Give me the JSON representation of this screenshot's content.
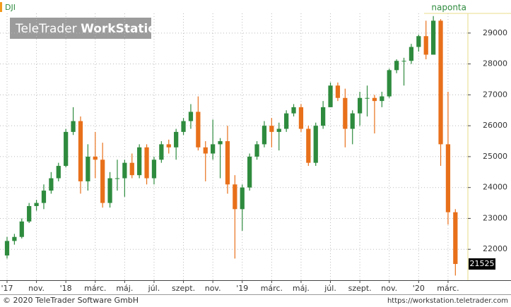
{
  "chart_data": {
    "type": "candlestick",
    "symbol": "DJI",
    "interval": "naponta",
    "watermark": [
      "TeleTrader",
      "WorkStation"
    ],
    "footer_left": "© 2020 TeleTrader Software GmbH",
    "footer_right": "https://workstation.teletrader.com",
    "up_color": "#2e8b3e",
    "down_color": "#e8701a",
    "x": [
      0,
      0.5,
      1,
      1.5,
      2,
      2.5,
      3,
      3.5,
      4,
      4.5,
      5,
      5.5,
      6,
      6.5,
      7,
      7.5,
      8,
      8.5,
      9,
      9.5,
      10,
      10.5,
      11,
      11.5,
      12,
      12.5,
      13,
      13.5,
      14,
      14.5,
      15,
      15.5,
      16,
      16.5,
      17,
      17.5,
      18,
      18.5,
      19,
      19.5,
      20,
      20.5,
      21,
      21.5,
      22,
      22.5,
      23,
      23.5,
      24,
      24.5,
      25,
      25.5,
      26,
      26.5,
      27,
      27.5,
      28,
      28.5,
      29,
      29.5,
      30,
      30.5
    ],
    "open": [
      21800,
      22270,
      22400,
      22900,
      23400,
      23500,
      23900,
      24300,
      24700,
      25800,
      26150,
      24200,
      25000,
      24900,
      23500,
      24300,
      24300,
      24800,
      24400,
      25300,
      24300,
      24900,
      25400,
      25300,
      25800,
      26150,
      26450,
      25300,
      25100,
      25400,
      25500,
      24100,
      23300,
      24000,
      25000,
      25400,
      26000,
      25800,
      25900,
      26400,
      26600,
      25900,
      24800,
      26000,
      26600,
      27300,
      26900,
      25900,
      26400,
      26900,
      26900,
      26800,
      26950,
      27800,
      28100,
      28100,
      28550,
      28900,
      28300,
      29400,
      25400,
      23200
    ],
    "high": [
      22400,
      22500,
      23000,
      23500,
      23600,
      24100,
      24500,
      24800,
      25900,
      26600,
      26300,
      25400,
      25800,
      25450,
      24500,
      24900,
      24900,
      25100,
      25400,
      25400,
      25000,
      25500,
      25550,
      25900,
      26250,
      26700,
      26950,
      25500,
      26200,
      25600,
      26000,
      24400,
      24100,
      25100,
      25500,
      26150,
      26250,
      26100,
      26500,
      26700,
      26700,
      26000,
      26100,
      26800,
      27400,
      27400,
      27200,
      26500,
      27100,
      27300,
      27000,
      27100,
      27850,
      28150,
      28200,
      28650,
      28950,
      29400,
      29550,
      29450,
      27100,
      23300
    ],
    "low": [
      21700,
      22150,
      22350,
      22850,
      23250,
      23300,
      23800,
      24200,
      24650,
      25700,
      23800,
      23900,
      24300,
      23350,
      23350,
      23900,
      23700,
      24300,
      24300,
      24100,
      24100,
      24800,
      25100,
      24900,
      25700,
      25900,
      25200,
      24200,
      24900,
      24300,
      23800,
      21700,
      22600,
      23900,
      24900,
      25300,
      25300,
      25200,
      25800,
      26300,
      25800,
      24700,
      24700,
      25900,
      26600,
      26800,
      25300,
      25400,
      26000,
      26300,
      25750,
      26600,
      26900,
      27700,
      27300,
      28000,
      28400,
      28150,
      28300,
      24700,
      22800,
      21150
    ],
    "close": [
      22270,
      22400,
      22900,
      23400,
      23500,
      23900,
      24300,
      24700,
      25800,
      26150,
      24200,
      25000,
      24900,
      23500,
      24300,
      24300,
      24800,
      24400,
      25300,
      24300,
      24900,
      25400,
      25300,
      25800,
      26150,
      26450,
      25300,
      25100,
      25400,
      25500,
      24100,
      23300,
      24000,
      25000,
      25400,
      26000,
      25800,
      25900,
      26400,
      26600,
      25900,
      24800,
      26000,
      26600,
      27300,
      26900,
      25900,
      26400,
      26900,
      26900,
      26800,
      26950,
      27800,
      28100,
      28100,
      28550,
      28900,
      28300,
      29400,
      25400,
      23200,
      21525
    ],
    "xlim": [
      -0.48,
      31.35
    ],
    "xticks": [
      {
        "value": 0,
        "label": "'17"
      },
      {
        "value": 2,
        "label": "nov."
      },
      {
        "value": 4,
        "label": "'18"
      },
      {
        "value": 6,
        "label": "márc."
      },
      {
        "value": 8,
        "label": "máj."
      },
      {
        "value": 10,
        "label": "júl."
      },
      {
        "value": 12,
        "label": "szept."
      },
      {
        "value": 14,
        "label": "nov."
      },
      {
        "value": 16,
        "label": "'19"
      },
      {
        "value": 18,
        "label": "márc."
      },
      {
        "value": 20,
        "label": "máj."
      },
      {
        "value": 22,
        "label": "júl."
      },
      {
        "value": 24,
        "label": "szept."
      },
      {
        "value": 26,
        "label": "nov."
      },
      {
        "value": 28,
        "label": "'20"
      },
      {
        "value": 30,
        "label": "márc."
      }
    ],
    "ylim": [
      21000,
      30070
    ],
    "yticks": [
      22000,
      23000,
      24000,
      25000,
      26000,
      27000,
      28000,
      29000
    ],
    "grid": true
  }
}
